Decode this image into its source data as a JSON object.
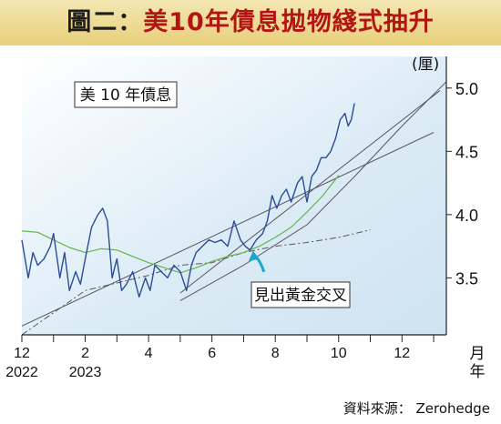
{
  "header": {
    "prefix": "圖二：",
    "title": "美10年債息拋物綫式抽升"
  },
  "source": {
    "text": "資料來源： Zerohedge"
  },
  "colors": {
    "banner_top": "#f4e7b3",
    "banner_bottom": "#e7cf7a",
    "title_accent": "#b31515",
    "plot_bg": "#dcecf6",
    "yield_line": "#2c4c98",
    "moving_average": "#69b348",
    "trend_lines": "#58555f",
    "arrow": "#1ba6cd"
  },
  "chart_data": {
    "type": "line",
    "title": "美 10 年債息",
    "ylabel": "(厘)",
    "xlabel": "月\n年",
    "ylim": [
      3.05,
      5.25
    ],
    "xlim": [
      0,
      13.4
    ],
    "y_ticks": [
      3.5,
      4.0,
      4.5,
      5.0
    ],
    "y_tick_labels": [
      "3.5",
      "4.0",
      "4.5",
      "5.0"
    ],
    "x_ticks": [
      0,
      2,
      4,
      6,
      8,
      10,
      12
    ],
    "x_tick_labels": [
      "12",
      "2",
      "4",
      "6",
      "8",
      "10",
      "12"
    ],
    "x_year_labels": [
      {
        "x": 0,
        "label": "2022"
      },
      {
        "x": 2,
        "label": "2023"
      }
    ],
    "grid": false,
    "annotation": {
      "text": "見出黃金交叉",
      "arrow_x": 7.3,
      "arrow_y": 3.72
    },
    "series": [
      {
        "role": "yield",
        "x": [
          0,
          0.2,
          0.35,
          0.5,
          0.7,
          0.9,
          1.0,
          1.2,
          1.35,
          1.5,
          1.7,
          1.85,
          2.0,
          2.2,
          2.4,
          2.55,
          2.7,
          2.85,
          3.0,
          3.15,
          3.3,
          3.5,
          3.7,
          3.9,
          4.05,
          4.2,
          4.4,
          4.6,
          4.8,
          5.0,
          5.2,
          5.35,
          5.5,
          5.7,
          5.9,
          6.1,
          6.3,
          6.5,
          6.7,
          6.9,
          7.05,
          7.2,
          7.4,
          7.6,
          7.75,
          7.9,
          8.05,
          8.2,
          8.35,
          8.5,
          8.7,
          8.85,
          9.0,
          9.15,
          9.3,
          9.45,
          9.6,
          9.75,
          9.9,
          10.05,
          10.2,
          10.3,
          10.4,
          10.5
        ],
        "values": [
          3.8,
          3.5,
          3.7,
          3.6,
          3.65,
          3.75,
          3.85,
          3.5,
          3.7,
          3.4,
          3.55,
          3.45,
          3.65,
          3.9,
          4.0,
          4.05,
          3.95,
          3.5,
          3.65,
          3.4,
          3.45,
          3.55,
          3.35,
          3.5,
          3.4,
          3.6,
          3.55,
          3.5,
          3.6,
          3.55,
          3.4,
          3.6,
          3.7,
          3.75,
          3.8,
          3.78,
          3.8,
          3.75,
          3.95,
          3.8,
          3.75,
          3.72,
          3.8,
          3.85,
          3.95,
          4.15,
          4.05,
          4.15,
          4.2,
          4.1,
          4.25,
          4.3,
          4.1,
          4.3,
          4.35,
          4.45,
          4.45,
          4.5,
          4.6,
          4.75,
          4.8,
          4.7,
          4.75,
          4.88
        ]
      },
      {
        "role": "moving-average",
        "x": [
          0,
          0.5,
          1.0,
          1.5,
          2.0,
          2.5,
          3.0,
          3.5,
          4.0,
          4.5,
          5.0,
          5.5,
          6.0,
          6.5,
          7.0,
          7.5,
          8.0,
          8.5,
          9.0,
          9.5,
          10.0
        ],
        "values": [
          3.87,
          3.86,
          3.8,
          3.74,
          3.7,
          3.73,
          3.72,
          3.67,
          3.62,
          3.58,
          3.54,
          3.58,
          3.63,
          3.67,
          3.7,
          3.75,
          3.82,
          3.9,
          4.02,
          4.15,
          4.31
        ]
      },
      {
        "role": "trend-line",
        "x": [
          0,
          2,
          4,
          5,
          6,
          7,
          8,
          9,
          10,
          11
        ],
        "values": [
          3.05,
          3.4,
          3.52,
          3.6,
          3.62,
          3.7,
          3.75,
          3.78,
          3.82,
          3.88
        ]
      },
      {
        "role": "trend-line",
        "x": [
          0,
          13.0
        ],
        "values": [
          3.12,
          4.65
        ]
      },
      {
        "role": "trend-line",
        "x": [
          5.0,
          13.2
        ],
        "values": [
          3.38,
          4.98
        ]
      },
      {
        "role": "trend-line",
        "x": [
          5.0,
          7.0,
          9.0,
          10.5,
          12.0,
          13.4
        ],
        "values": [
          3.32,
          3.6,
          3.92,
          4.3,
          4.7,
          5.05
        ]
      }
    ]
  }
}
